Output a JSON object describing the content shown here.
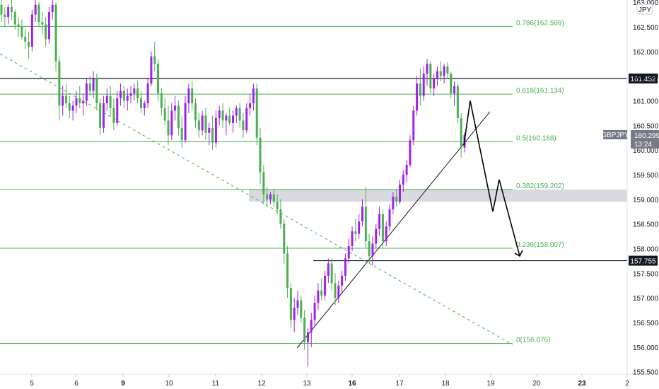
{
  "chart_data": {
    "type": "candlestick",
    "symbol": "GBPJPY",
    "currency": "JPY",
    "countdown": "13:24",
    "last_price": 160.299,
    "colors": {
      "up": "#a020f0",
      "down": "#4caf50",
      "fib": "#4caf50",
      "box": "#d9dadf"
    },
    "ylim": [
      155.45,
      163.15
    ],
    "xlim": [
      0,
      932
    ],
    "y_ticks": [
      {
        "value": 163.0,
        "label": "163.000"
      },
      {
        "value": 162.5,
        "label": "162.500"
      },
      {
        "value": 162.0,
        "label": "162.000"
      },
      {
        "value": 161.5,
        "label": "161.500"
      },
      {
        "value": 161.0,
        "label": "161.000"
      },
      {
        "value": 160.5,
        "label": "160.500"
      },
      {
        "value": 160.0,
        "label": "160.000"
      },
      {
        "value": 159.5,
        "label": "159.500"
      },
      {
        "value": 159.0,
        "label": "159.000"
      },
      {
        "value": 158.5,
        "label": "158.500"
      },
      {
        "value": 158.0,
        "label": "158.000"
      },
      {
        "value": 157.5,
        "label": "157.500"
      },
      {
        "value": 157.0,
        "label": "157.000"
      },
      {
        "value": 156.5,
        "label": "156.500"
      },
      {
        "value": 156.0,
        "label": "156.000"
      },
      {
        "value": 155.5,
        "label": "155.500"
      }
    ],
    "x_ticks": [
      {
        "label": "5",
        "bold": false
      },
      {
        "label": "6",
        "bold": false
      },
      {
        "label": "9",
        "bold": true
      },
      {
        "label": "10",
        "bold": false
      },
      {
        "label": "11",
        "bold": false
      },
      {
        "label": "12",
        "bold": false
      },
      {
        "label": "13",
        "bold": false
      },
      {
        "label": "16",
        "bold": true
      },
      {
        "label": "17",
        "bold": false
      },
      {
        "label": "18",
        "bold": false
      },
      {
        "label": "19",
        "bold": false
      },
      {
        "label": "20",
        "bold": false
      },
      {
        "label": "23",
        "bold": true
      },
      {
        "label": "2",
        "bold": false
      }
    ],
    "fib_levels": [
      {
        "label": "0.786(162.509)",
        "value": 162.509
      },
      {
        "label": "0.618(161.134)",
        "value": 161.134
      },
      {
        "label": "0.5(160.168)",
        "value": 160.168
      },
      {
        "label": "0.382(159.202)",
        "value": 159.202
      },
      {
        "label": "0.236(158.007)",
        "value": 158.007
      },
      {
        "label": "0(156.076)",
        "value": 156.076
      }
    ],
    "horizontal_levels": [
      {
        "label": "161.452",
        "value": 161.452
      },
      {
        "label": "157.755",
        "value": 157.755
      }
    ],
    "zone": {
      "from": 158.95,
      "to": 159.2
    },
    "trendlines": [
      {
        "style": "dashed",
        "points": [
          [
            0,
            161.95
          ],
          [
            725,
            156.05
          ]
        ]
      },
      {
        "style": "solid",
        "points": [
          [
            420,
            155.98
          ],
          [
            693,
            160.78
          ]
        ]
      }
    ],
    "projection": [
      [
        656,
        160.1
      ],
      [
        665,
        161.0
      ],
      [
        697,
        158.75
      ],
      [
        706,
        159.4
      ],
      [
        735,
        157.85
      ]
    ],
    "candles_ohlc": [
      [
        162.95,
        163.1,
        162.6,
        162.75
      ],
      [
        162.75,
        162.9,
        162.5,
        162.7
      ],
      [
        162.7,
        162.95,
        162.55,
        162.9
      ],
      [
        162.9,
        163.05,
        162.65,
        162.8
      ],
      [
        162.8,
        162.85,
        162.45,
        162.55
      ],
      [
        162.55,
        162.7,
        162.3,
        162.5
      ],
      [
        162.5,
        162.65,
        162.25,
        162.3
      ],
      [
        162.3,
        162.45,
        162.05,
        162.2
      ],
      [
        162.2,
        162.4,
        161.85,
        162.1
      ],
      [
        162.1,
        162.85,
        162.0,
        162.75
      ],
      [
        162.75,
        163.05,
        162.6,
        162.95
      ],
      [
        162.95,
        163.0,
        162.5,
        162.6
      ],
      [
        162.6,
        162.8,
        162.35,
        162.55
      ],
      [
        162.55,
        162.7,
        162.1,
        162.25
      ],
      [
        162.25,
        162.9,
        162.15,
        162.8
      ],
      [
        162.8,
        163.1,
        162.65,
        162.95
      ],
      [
        162.95,
        163.0,
        161.6,
        161.8
      ],
      [
        161.8,
        161.9,
        160.6,
        160.9
      ],
      [
        160.9,
        161.3,
        160.7,
        161.1
      ],
      [
        161.1,
        161.35,
        160.85,
        160.95
      ],
      [
        160.95,
        161.1,
        160.65,
        160.8
      ],
      [
        160.8,
        161.0,
        160.6,
        160.9
      ],
      [
        160.9,
        161.2,
        160.75,
        161.05
      ],
      [
        161.05,
        161.3,
        160.85,
        160.95
      ],
      [
        160.95,
        161.15,
        160.7,
        161.0
      ],
      [
        161.0,
        161.45,
        160.9,
        161.35
      ],
      [
        161.35,
        161.5,
        161.1,
        161.2
      ],
      [
        161.2,
        161.6,
        161.05,
        161.45
      ],
      [
        161.45,
        161.55,
        160.8,
        160.95
      ],
      [
        160.95,
        161.05,
        160.3,
        160.45
      ],
      [
        160.45,
        161.1,
        160.35,
        160.95
      ],
      [
        160.95,
        161.25,
        160.8,
        161.1
      ],
      [
        161.1,
        161.3,
        160.7,
        160.85
      ],
      [
        160.85,
        161.05,
        160.4,
        160.55
      ],
      [
        160.55,
        161.2,
        160.5,
        161.05
      ],
      [
        161.05,
        161.35,
        160.9,
        161.2
      ],
      [
        161.2,
        161.3,
        160.85,
        161.0
      ],
      [
        161.0,
        161.25,
        160.8,
        161.1
      ],
      [
        161.1,
        161.3,
        160.95,
        161.15
      ],
      [
        161.15,
        161.35,
        161.0,
        161.25
      ],
      [
        161.25,
        161.4,
        160.95,
        161.05
      ],
      [
        161.05,
        161.2,
        160.75,
        160.85
      ],
      [
        160.85,
        161.0,
        160.7,
        160.95
      ],
      [
        160.95,
        161.45,
        160.85,
        161.35
      ],
      [
        161.35,
        162.0,
        161.3,
        161.9
      ],
      [
        161.9,
        162.2,
        161.6,
        161.75
      ],
      [
        161.75,
        161.85,
        161.0,
        161.15
      ],
      [
        161.15,
        161.25,
        160.7,
        160.85
      ],
      [
        160.85,
        161.05,
        160.5,
        160.6
      ],
      [
        160.6,
        160.9,
        160.1,
        160.3
      ],
      [
        160.3,
        160.95,
        160.2,
        160.8
      ],
      [
        160.8,
        161.1,
        160.6,
        160.9
      ],
      [
        160.9,
        161.0,
        160.3,
        160.45
      ],
      [
        160.45,
        160.7,
        160.05,
        160.2
      ],
      [
        160.2,
        161.1,
        160.15,
        160.95
      ],
      [
        160.95,
        161.35,
        160.75,
        161.25
      ],
      [
        161.25,
        161.4,
        160.8,
        160.95
      ],
      [
        160.95,
        161.05,
        160.45,
        160.6
      ],
      [
        160.6,
        160.75,
        160.25,
        160.4
      ],
      [
        160.4,
        160.8,
        160.3,
        160.7
      ],
      [
        160.7,
        160.85,
        160.2,
        160.35
      ],
      [
        160.35,
        160.55,
        160.1,
        160.45
      ],
      [
        160.45,
        160.7,
        160.0,
        160.15
      ],
      [
        160.15,
        160.8,
        160.05,
        160.65
      ],
      [
        160.65,
        160.9,
        160.5,
        160.8
      ],
      [
        160.8,
        160.95,
        160.45,
        160.6
      ],
      [
        160.6,
        160.75,
        160.3,
        160.7
      ],
      [
        160.7,
        160.85,
        160.5,
        160.55
      ],
      [
        160.55,
        160.8,
        160.35,
        160.7
      ],
      [
        160.7,
        160.9,
        160.55,
        160.85
      ],
      [
        160.85,
        160.95,
        160.45,
        160.6
      ],
      [
        160.6,
        160.75,
        160.25,
        160.4
      ],
      [
        160.4,
        160.95,
        160.35,
        160.85
      ],
      [
        160.85,
        161.15,
        160.7,
        160.95
      ],
      [
        160.95,
        161.35,
        160.8,
        161.25
      ],
      [
        161.25,
        161.35,
        160.1,
        160.25
      ],
      [
        160.25,
        160.45,
        159.3,
        159.55
      ],
      [
        159.55,
        159.7,
        158.9,
        159.1
      ],
      [
        159.1,
        159.25,
        158.85,
        159.0
      ],
      [
        159.0,
        159.15,
        158.9,
        159.1
      ],
      [
        159.1,
        159.2,
        158.85,
        158.95
      ],
      [
        158.95,
        159.1,
        158.7,
        158.8
      ],
      [
        158.8,
        159.0,
        158.4,
        158.5
      ],
      [
        158.5,
        158.6,
        157.7,
        157.9
      ],
      [
        157.9,
        158.05,
        157.0,
        157.2
      ],
      [
        157.2,
        157.3,
        156.4,
        156.55
      ],
      [
        156.55,
        157.0,
        156.3,
        156.8
      ],
      [
        156.8,
        157.15,
        156.65,
        156.95
      ],
      [
        156.95,
        157.05,
        156.5,
        156.6
      ],
      [
        156.6,
        156.75,
        155.95,
        156.1
      ],
      [
        156.1,
        156.4,
        155.6,
        156.3
      ],
      [
        156.3,
        156.7,
        156.0,
        156.55
      ],
      [
        156.55,
        157.05,
        156.4,
        156.9
      ],
      [
        156.9,
        157.3,
        156.75,
        157.15
      ],
      [
        157.15,
        157.4,
        156.95,
        157.05
      ],
      [
        157.05,
        157.55,
        156.95,
        157.45
      ],
      [
        157.45,
        157.8,
        157.3,
        157.7
      ],
      [
        157.7,
        157.8,
        157.15,
        157.3
      ],
      [
        157.3,
        157.5,
        156.85,
        157.0
      ],
      [
        157.0,
        157.35,
        156.9,
        157.25
      ],
      [
        157.25,
        157.55,
        157.1,
        157.45
      ],
      [
        157.45,
        157.9,
        157.35,
        157.8
      ],
      [
        157.8,
        158.2,
        157.7,
        158.05
      ],
      [
        158.05,
        158.45,
        157.95,
        158.35
      ],
      [
        158.35,
        158.6,
        158.15,
        158.3
      ],
      [
        158.3,
        158.7,
        158.2,
        158.55
      ],
      [
        158.55,
        159.0,
        158.45,
        158.85
      ],
      [
        158.85,
        159.25,
        158.0,
        158.15
      ],
      [
        158.15,
        158.3,
        157.7,
        157.85
      ],
      [
        157.85,
        158.25,
        157.65,
        158.1
      ],
      [
        158.1,
        158.5,
        158.0,
        158.4
      ],
      [
        158.4,
        158.85,
        158.25,
        158.7
      ],
      [
        158.7,
        158.8,
        158.0,
        158.15
      ],
      [
        158.15,
        158.55,
        158.05,
        158.45
      ],
      [
        158.45,
        158.9,
        158.35,
        158.8
      ],
      [
        158.8,
        159.15,
        158.7,
        159.05
      ],
      [
        159.05,
        159.2,
        158.85,
        158.95
      ],
      [
        158.95,
        159.4,
        158.9,
        159.3
      ],
      [
        159.3,
        159.6,
        159.15,
        159.5
      ],
      [
        159.5,
        159.8,
        159.35,
        159.7
      ],
      [
        159.7,
        160.3,
        159.65,
        160.2
      ],
      [
        160.2,
        160.9,
        160.1,
        160.8
      ],
      [
        160.8,
        161.5,
        160.7,
        161.35
      ],
      [
        161.35,
        161.65,
        160.9,
        161.1
      ],
      [
        161.1,
        161.7,
        161.0,
        161.55
      ],
      [
        161.55,
        161.85,
        161.3,
        161.75
      ],
      [
        161.75,
        161.8,
        161.15,
        161.25
      ],
      [
        161.25,
        161.55,
        161.1,
        161.45
      ],
      [
        161.45,
        161.7,
        161.3,
        161.6
      ],
      [
        161.6,
        161.8,
        161.4,
        161.5
      ],
      [
        161.5,
        161.75,
        161.35,
        161.7
      ],
      [
        161.7,
        161.78,
        161.45,
        161.55
      ],
      [
        161.55,
        161.6,
        161.05,
        161.15
      ],
      [
        161.15,
        161.4,
        160.9,
        161.3
      ],
      [
        161.3,
        161.35,
        160.55,
        160.65
      ],
      [
        160.65,
        160.75,
        159.85,
        160.05
      ],
      [
        160.05,
        160.35,
        159.95,
        160.3
      ]
    ]
  }
}
